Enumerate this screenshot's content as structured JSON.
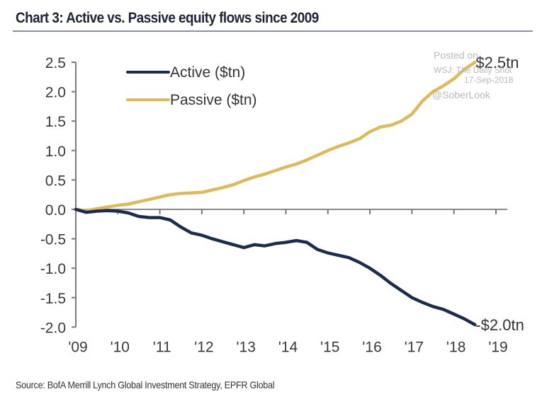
{
  "chart_data": {
    "type": "line",
    "title": "Chart 3: Active vs. Passive equity flows since 2009",
    "xlabel": "",
    "ylabel": "",
    "ylim": [
      -2.0,
      2.5
    ],
    "xlim": [
      2009,
      2019.3
    ],
    "yticks": [
      2.5,
      2.0,
      1.5,
      1.0,
      0.5,
      0.0,
      -0.5,
      -1.0,
      -1.5,
      -2.0
    ],
    "ytick_labels": [
      "2.5",
      "2.0",
      "1.5",
      "1.0",
      "0.5",
      "0.0",
      "-0.5",
      "-1.0",
      "-1.5",
      "-2.0"
    ],
    "xticks": [
      2009,
      2010,
      2011,
      2012,
      2013,
      2014,
      2015,
      2016,
      2017,
      2018,
      2019
    ],
    "xtick_labels": [
      "'09",
      "'10",
      "'11",
      "'12",
      "'13",
      "'14",
      "'15",
      "'16",
      "'17",
      "'18",
      "'19"
    ],
    "grid": false,
    "legend": {
      "placement": "top-left",
      "entries": [
        "Active ($tn)",
        "Passive ($tn)"
      ]
    },
    "series": [
      {
        "name": "Active ($tn)",
        "color": "#1b2d4f",
        "x": [
          2009.0,
          2009.25,
          2009.5,
          2009.75,
          2010.0,
          2010.25,
          2010.5,
          2010.75,
          2011.0,
          2011.25,
          2011.5,
          2011.75,
          2012.0,
          2012.25,
          2012.5,
          2012.75,
          2013.0,
          2013.25,
          2013.5,
          2013.75,
          2014.0,
          2014.25,
          2014.5,
          2014.75,
          2015.0,
          2015.25,
          2015.5,
          2015.75,
          2016.0,
          2016.25,
          2016.5,
          2016.75,
          2017.0,
          2017.25,
          2017.5,
          2017.75,
          2018.0,
          2018.25,
          2018.5
        ],
        "values": [
          0.0,
          -0.05,
          -0.03,
          -0.02,
          -0.03,
          -0.06,
          -0.12,
          -0.14,
          -0.14,
          -0.18,
          -0.3,
          -0.4,
          -0.44,
          -0.5,
          -0.55,
          -0.6,
          -0.65,
          -0.6,
          -0.62,
          -0.58,
          -0.56,
          -0.53,
          -0.56,
          -0.68,
          -0.74,
          -0.78,
          -0.82,
          -0.9,
          -1.0,
          -1.12,
          -1.26,
          -1.38,
          -1.5,
          -1.58,
          -1.65,
          -1.7,
          -1.78,
          -1.86,
          -1.96
        ]
      },
      {
        "name": "Passive ($tn)",
        "color": "#e0b95a",
        "x": [
          2009.0,
          2009.25,
          2009.5,
          2009.75,
          2010.0,
          2010.25,
          2010.5,
          2010.75,
          2011.0,
          2011.25,
          2011.5,
          2011.75,
          2012.0,
          2012.25,
          2012.5,
          2012.75,
          2013.0,
          2013.25,
          2013.5,
          2013.75,
          2014.0,
          2014.25,
          2014.5,
          2014.75,
          2015.0,
          2015.25,
          2015.5,
          2015.75,
          2016.0,
          2016.25,
          2016.5,
          2016.75,
          2017.0,
          2017.25,
          2017.5,
          2017.75,
          2018.0,
          2018.25,
          2018.5
        ],
        "values": [
          0.0,
          -0.02,
          0.01,
          0.04,
          0.07,
          0.09,
          0.13,
          0.17,
          0.21,
          0.25,
          0.27,
          0.28,
          0.29,
          0.33,
          0.37,
          0.42,
          0.49,
          0.55,
          0.6,
          0.66,
          0.72,
          0.77,
          0.84,
          0.92,
          1.0,
          1.07,
          1.13,
          1.2,
          1.32,
          1.4,
          1.43,
          1.5,
          1.62,
          1.84,
          2.0,
          2.1,
          2.22,
          2.38,
          2.5
        ]
      }
    ],
    "annotations": [
      {
        "text": "$2.5tn",
        "series": "Passive ($tn)",
        "at": [
          2018.5,
          2.5
        ]
      },
      {
        "text": "-$2.0tn",
        "series": "Active ($tn)",
        "at": [
          2018.5,
          -1.96
        ]
      }
    ]
  },
  "source": "Source:  BofA Merrill Lynch Global Investment Strategy, EPFR Global",
  "watermark": {
    "line1": "Posted on",
    "line2": "WSJ: The Daily Shot",
    "line3": "17-Sep-2018",
    "line4": "@SoberLook"
  }
}
